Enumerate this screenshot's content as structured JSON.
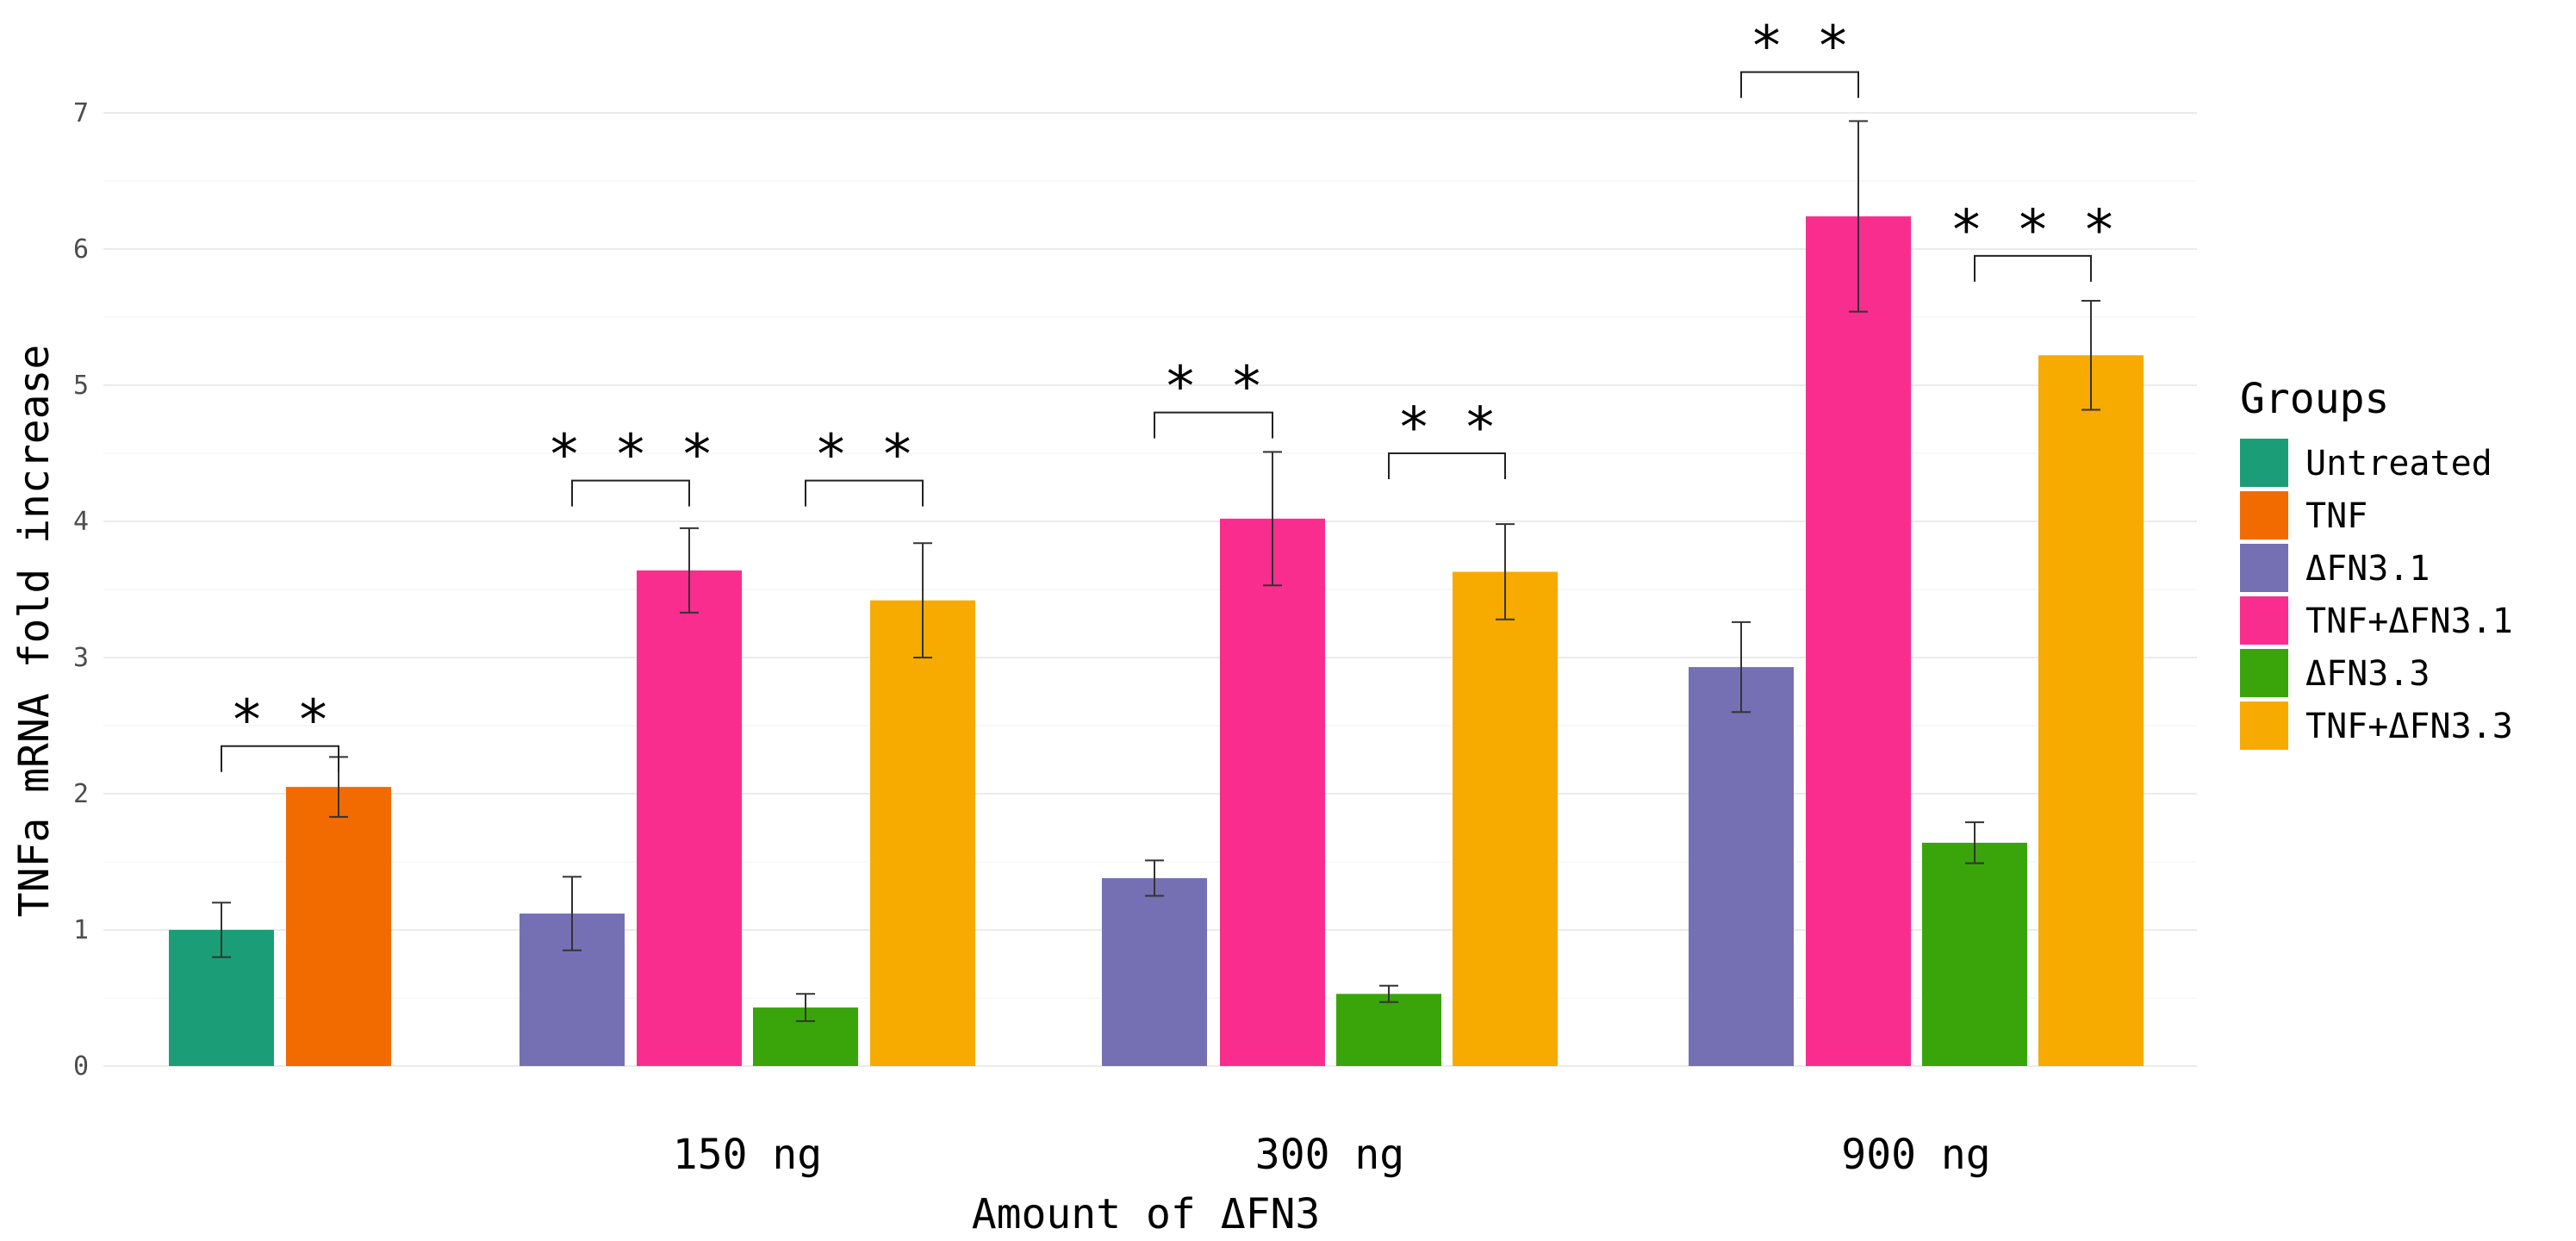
{
  "chart_data": {
    "type": "bar",
    "xlabel": "Amount of ΔFN3",
    "ylabel": "TNFa mRNA fold increase",
    "ylim": [
      0,
      7.4
    ],
    "yticks": [
      0,
      1,
      2,
      3,
      4,
      5,
      6,
      7
    ],
    "grid": true,
    "legend": {
      "title": "Groups",
      "position": "right",
      "entries": [
        {
          "name": "Untreated",
          "color": "#1b9e77"
        },
        {
          "name": "TNF",
          "color": "#f26b00"
        },
        {
          "name": "ΔFN3.1",
          "color": "#7570b3"
        },
        {
          "name": "TNF+ΔFN3.1",
          "color": "#f92d8e"
        },
        {
          "name": "ΔFN3.3",
          "color": "#3aa50b"
        },
        {
          "name": "TNF+ΔFN3.3",
          "color": "#f7aa00"
        }
      ]
    },
    "categories": [
      "",
      "150 ng",
      "300 ng",
      "900 ng"
    ],
    "bars": [
      {
        "category": "",
        "group": "Untreated",
        "value": 1.0,
        "error": 0.2
      },
      {
        "category": "",
        "group": "TNF",
        "value": 2.05,
        "error": 0.22
      },
      {
        "category": "150 ng",
        "group": "ΔFN3.1",
        "value": 1.12,
        "error": 0.27
      },
      {
        "category": "150 ng",
        "group": "TNF+ΔFN3.1",
        "value": 3.64,
        "error": 0.31
      },
      {
        "category": "150 ng",
        "group": "ΔFN3.3",
        "value": 0.43,
        "error": 0.1
      },
      {
        "category": "150 ng",
        "group": "TNF+ΔFN3.3",
        "value": 3.42,
        "error": 0.42
      },
      {
        "category": "300 ng",
        "group": "ΔFN3.1",
        "value": 1.38,
        "error": 0.13
      },
      {
        "category": "300 ng",
        "group": "TNF+ΔFN3.1",
        "value": 4.02,
        "error": 0.49
      },
      {
        "category": "300 ng",
        "group": "ΔFN3.3",
        "value": 0.53,
        "error": 0.06
      },
      {
        "category": "300 ng",
        "group": "TNF+ΔFN3.3",
        "value": 3.63,
        "error": 0.35
      },
      {
        "category": "900 ng",
        "group": "ΔFN3.1",
        "value": 2.93,
        "error": 0.33
      },
      {
        "category": "900 ng",
        "group": "TNF+ΔFN3.1",
        "value": 6.24,
        "error": 0.7
      },
      {
        "category": "900 ng",
        "group": "ΔFN3.3",
        "value": 1.64,
        "error": 0.15
      },
      {
        "category": "900 ng",
        "group": "TNF+ΔFN3.3",
        "value": 5.22,
        "error": 0.4
      }
    ],
    "significance": [
      {
        "from_bar": 0,
        "to_bar": 1,
        "y": 2.35,
        "label": "* *"
      },
      {
        "from_bar": 2,
        "to_bar": 3,
        "y": 4.3,
        "label": "* * *"
      },
      {
        "from_bar": 4,
        "to_bar": 5,
        "y": 4.3,
        "label": "* *"
      },
      {
        "from_bar": 6,
        "to_bar": 7,
        "y": 4.8,
        "label": "* *"
      },
      {
        "from_bar": 8,
        "to_bar": 9,
        "y": 4.5,
        "label": "* *"
      },
      {
        "from_bar": 10,
        "to_bar": 11,
        "y": 7.3,
        "label": "* *"
      },
      {
        "from_bar": 12,
        "to_bar": 13,
        "y": 5.95,
        "label": "* * *"
      }
    ]
  }
}
